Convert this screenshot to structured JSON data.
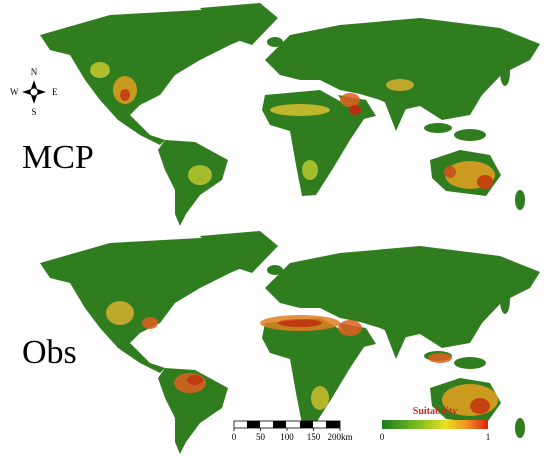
{
  "panels": [
    {
      "label": "MCP"
    },
    {
      "label": "Obs"
    }
  ],
  "compass": {
    "n": "N",
    "s": "S",
    "e": "E",
    "w": "W"
  },
  "scale_bar": {
    "ticks": [
      0,
      50,
      100,
      150,
      {
        "value": 200,
        "label": "200km"
      }
    ]
  },
  "legend": {
    "title": "Suitability",
    "min": 0,
    "max": 1
  }
}
